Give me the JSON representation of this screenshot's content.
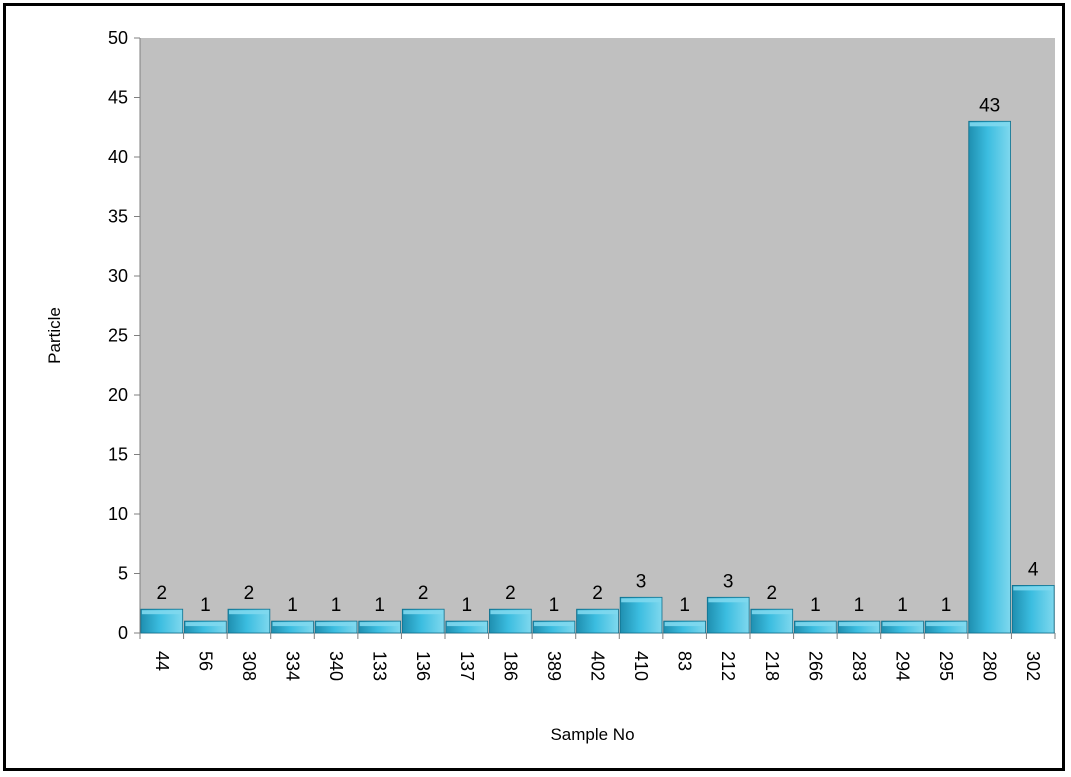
{
  "chart_data": {
    "type": "bar",
    "title": "",
    "xlabel": "Sample No",
    "ylabel": "Particle",
    "ylim": [
      0,
      50
    ],
    "ytick_step": 5,
    "yticks": [
      "0",
      "5",
      "10",
      "15",
      "20",
      "25",
      "30",
      "35",
      "40",
      "45",
      "50"
    ],
    "grid": false,
    "legend": "none",
    "categories": [
      "44",
      "56",
      "308",
      "334",
      "340",
      "133",
      "136",
      "137",
      "186",
      "389",
      "402",
      "410",
      "83",
      "212",
      "218",
      "266",
      "283",
      "294",
      "295",
      "280",
      "302"
    ],
    "values": [
      2,
      1,
      2,
      1,
      1,
      1,
      2,
      1,
      2,
      1,
      2,
      3,
      1,
      3,
      2,
      1,
      1,
      1,
      1,
      43,
      4
    ],
    "data_labels": true,
    "colors": {
      "plot_background": "#c0c0c0",
      "bar_light": "#7fd8ee",
      "bar_mid": "#3bbde0",
      "bar_dark": "#1f8fb0",
      "bar_edge": "#0f6f8c"
    }
  }
}
